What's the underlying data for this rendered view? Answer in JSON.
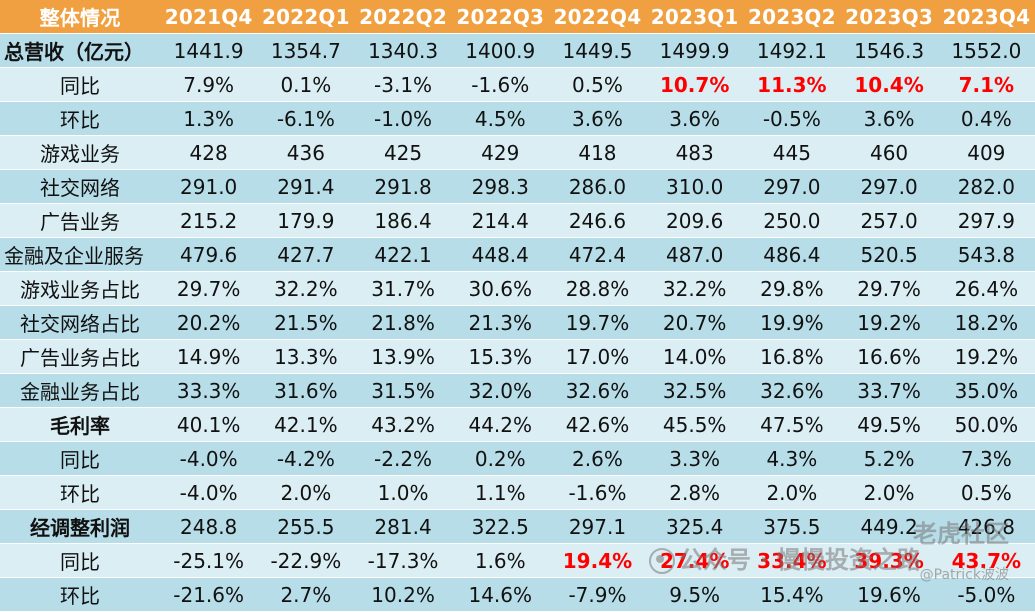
{
  "header": {
    "label": "整体情况",
    "quarters": [
      "2021Q4",
      "2022Q1",
      "2022Q2",
      "2022Q3",
      "2022Q4",
      "2023Q1",
      "2023Q2",
      "2023Q3",
      "2023Q4"
    ]
  },
  "highlight_color": "#ff0000",
  "rows": [
    {
      "label": "总营收（亿元）",
      "style": "bold-left",
      "values": [
        "1441.9",
        "1354.7",
        "1340.3",
        "1400.9",
        "1449.5",
        "1499.9",
        "1492.1",
        "1546.3",
        "1552.0"
      ],
      "red": []
    },
    {
      "label": "同比",
      "style": "normal",
      "values": [
        "7.9%",
        "0.1%",
        "-3.1%",
        "-1.6%",
        "0.5%",
        "10.7%",
        "11.3%",
        "10.4%",
        "7.1%"
      ],
      "red": [
        5,
        6,
        7,
        8
      ]
    },
    {
      "label": "环比",
      "style": "normal",
      "values": [
        "1.3%",
        "-6.1%",
        "-1.0%",
        "4.5%",
        "3.6%",
        "3.6%",
        "-0.5%",
        "3.6%",
        "0.4%"
      ],
      "red": []
    },
    {
      "label": "游戏业务",
      "style": "normal",
      "values": [
        "428",
        "436",
        "425",
        "429",
        "418",
        "483",
        "445",
        "460",
        "409"
      ],
      "red": []
    },
    {
      "label": "社交网络",
      "style": "normal",
      "values": [
        "291.0",
        "291.4",
        "291.8",
        "298.3",
        "286.0",
        "310.0",
        "297.0",
        "297.0",
        "282.0"
      ],
      "red": []
    },
    {
      "label": "广告业务",
      "style": "normal",
      "values": [
        "215.2",
        "179.9",
        "186.4",
        "214.4",
        "246.6",
        "209.6",
        "250.0",
        "257.0",
        "297.9"
      ],
      "red": []
    },
    {
      "label": "金融及企业服务",
      "style": "left",
      "values": [
        "479.6",
        "427.7",
        "422.1",
        "448.4",
        "472.4",
        "487.0",
        "486.4",
        "520.5",
        "543.8"
      ],
      "red": []
    },
    {
      "label": "游戏业务占比",
      "style": "normal",
      "values": [
        "29.7%",
        "32.2%",
        "31.7%",
        "30.6%",
        "28.8%",
        "32.2%",
        "29.8%",
        "29.7%",
        "26.4%"
      ],
      "red": []
    },
    {
      "label": "社交网络占比",
      "style": "normal",
      "values": [
        "20.2%",
        "21.5%",
        "21.8%",
        "21.3%",
        "19.7%",
        "20.7%",
        "19.9%",
        "19.2%",
        "18.2%"
      ],
      "red": []
    },
    {
      "label": "广告业务占比",
      "style": "normal",
      "values": [
        "14.9%",
        "13.3%",
        "13.9%",
        "15.3%",
        "17.0%",
        "14.0%",
        "16.8%",
        "16.6%",
        "19.2%"
      ],
      "red": []
    },
    {
      "label": "金融业务占比",
      "style": "normal",
      "values": [
        "33.3%",
        "31.6%",
        "31.5%",
        "32.0%",
        "32.6%",
        "32.5%",
        "32.6%",
        "33.7%",
        "35.0%"
      ],
      "red": []
    },
    {
      "label": "毛利率",
      "style": "bold",
      "values": [
        "40.1%",
        "42.1%",
        "43.2%",
        "44.2%",
        "42.6%",
        "45.5%",
        "47.5%",
        "49.5%",
        "50.0%"
      ],
      "red": []
    },
    {
      "label": "同比",
      "style": "normal",
      "values": [
        "-4.0%",
        "-4.2%",
        "-2.2%",
        "0.2%",
        "2.6%",
        "3.3%",
        "4.3%",
        "5.2%",
        "7.3%"
      ],
      "red": []
    },
    {
      "label": "环比",
      "style": "normal",
      "values": [
        "-4.0%",
        "2.0%",
        "1.0%",
        "1.1%",
        "-1.6%",
        "2.8%",
        "2.0%",
        "2.0%",
        "0.5%"
      ],
      "red": []
    },
    {
      "label": "经调整利润",
      "style": "bold",
      "values": [
        "248.8",
        "255.5",
        "281.4",
        "322.5",
        "297.1",
        "325.4",
        "375.5",
        "449.2",
        "426.8"
      ],
      "red": []
    },
    {
      "label": "同比",
      "style": "normal",
      "values": [
        "-25.1%",
        "-22.9%",
        "-17.3%",
        "1.6%",
        "19.4%",
        "27.4%",
        "33.4%",
        "39.3%",
        "43.7%"
      ],
      "red": [
        4,
        5,
        6,
        7,
        8
      ]
    },
    {
      "label": "环比",
      "style": "normal",
      "values": [
        "-21.6%",
        "2.7%",
        "10.2%",
        "14.6%",
        "-7.9%",
        "9.5%",
        "15.4%",
        "19.6%",
        "-5.0%"
      ],
      "red": []
    }
  ],
  "watermark": {
    "line1": "老虎社区",
    "line2": "公众号 · 慢慢投资之路",
    "line3": "@Patrick波波"
  }
}
